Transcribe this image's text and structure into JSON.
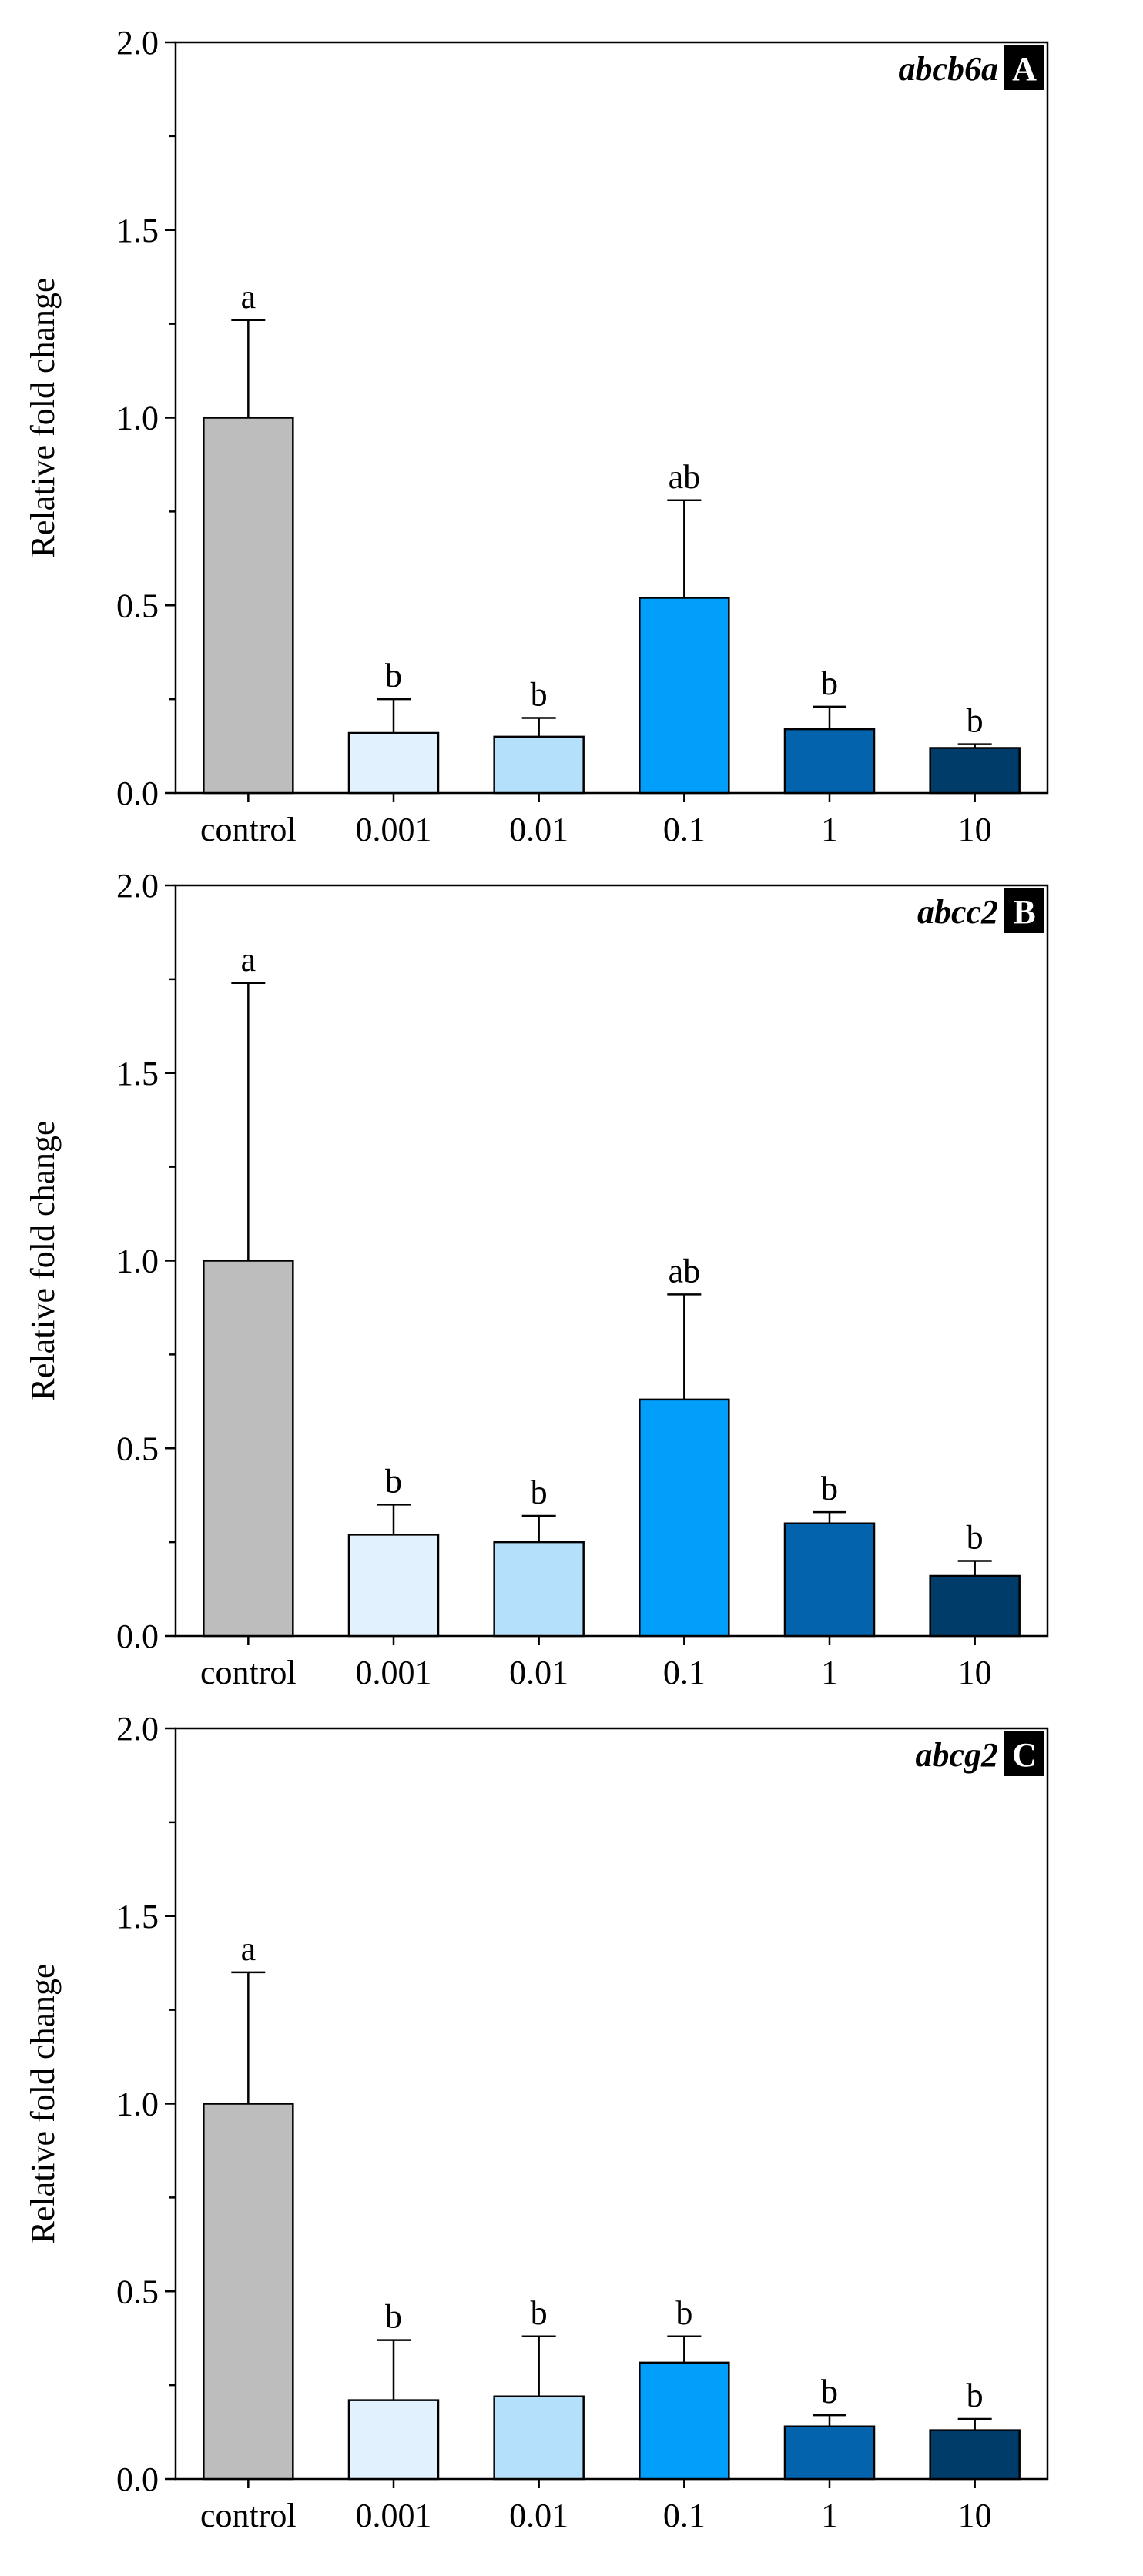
{
  "chart_data": [
    {
      "type": "bar",
      "panel": "A",
      "gene": "abcb6a",
      "ylabel": "Relative fold change",
      "ylim": [
        0,
        2.0
      ],
      "yticks": [
        "0.0",
        "0.5",
        "1.0",
        "1.5",
        "2.0"
      ],
      "categories": [
        "control",
        "0.001",
        "0.01",
        "0.1",
        "1",
        "10"
      ],
      "values": [
        1.0,
        0.16,
        0.15,
        0.52,
        0.17,
        0.12
      ],
      "errors": [
        0.26,
        0.09,
        0.05,
        0.26,
        0.06,
        0.01
      ],
      "significance": [
        "a",
        "b",
        "b",
        "ab",
        "b",
        "b"
      ]
    },
    {
      "type": "bar",
      "panel": "B",
      "gene": "abcc2",
      "ylabel": "Relative fold change",
      "ylim": [
        0,
        2.0
      ],
      "yticks": [
        "0.0",
        "0.5",
        "1.0",
        "1.5",
        "2.0"
      ],
      "categories": [
        "control",
        "0.001",
        "0.01",
        "0.1",
        "1",
        "10"
      ],
      "values": [
        1.0,
        0.27,
        0.25,
        0.63,
        0.3,
        0.16
      ],
      "errors": [
        0.74,
        0.08,
        0.07,
        0.28,
        0.03,
        0.04
      ],
      "significance": [
        "a",
        "b",
        "b",
        "ab",
        "b",
        "b"
      ]
    },
    {
      "type": "bar",
      "panel": "C",
      "gene": "abcg2",
      "ylabel": "Relative fold change",
      "ylim": [
        0,
        2.0
      ],
      "yticks": [
        "0.0",
        "0.5",
        "1.0",
        "1.5",
        "2.0"
      ],
      "categories": [
        "control",
        "0.001",
        "0.01",
        "0.1",
        "1",
        "10"
      ],
      "values": [
        1.0,
        0.21,
        0.22,
        0.31,
        0.14,
        0.13
      ],
      "errors": [
        0.35,
        0.16,
        0.16,
        0.07,
        0.03,
        0.03
      ],
      "significance": [
        "a",
        "b",
        "b",
        "b",
        "b",
        "b"
      ]
    }
  ],
  "colors": {
    "bars": [
      "#bdbdbd",
      "#e1f1fd",
      "#b5e0fb",
      "#029ffa",
      "#0363ac",
      "#003c6a"
    ],
    "axis": "#000000",
    "label_box": "#000000"
  }
}
